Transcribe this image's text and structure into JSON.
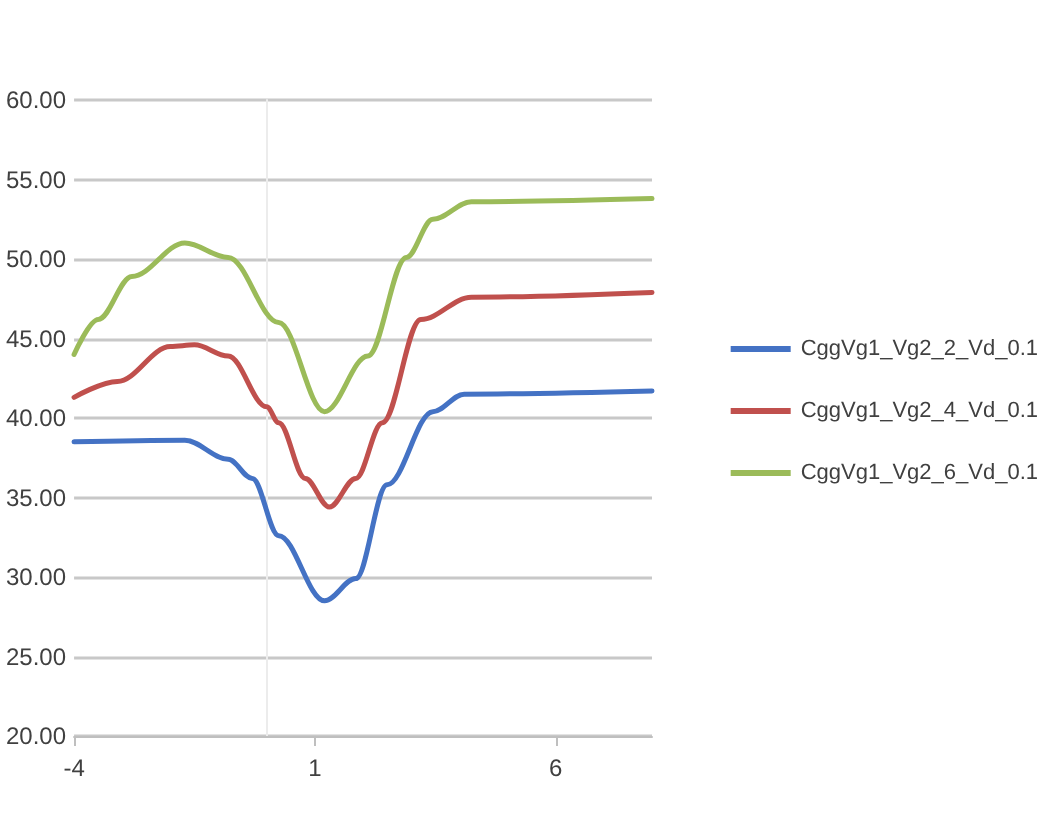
{
  "chart_data": {
    "type": "line",
    "xlim": [
      -4,
      8
    ],
    "xticks": [
      -4,
      1,
      6
    ],
    "ylim": [
      20,
      60
    ],
    "yticks": [
      {
        "value": 20,
        "label": "20.00"
      },
      {
        "value": 25,
        "label": "25.00"
      },
      {
        "value": 30,
        "label": "30.00"
      },
      {
        "value": 35,
        "label": "35.00"
      },
      {
        "value": 40,
        "label": "40.00"
      },
      {
        "value": 45,
        "label": "45.00"
      },
      {
        "value": 50,
        "label": "50.00"
      },
      {
        "value": 55,
        "label": "55.00"
      },
      {
        "value": 60,
        "label": "60.00"
      }
    ],
    "grid": "y",
    "legend": "right",
    "marker": "none",
    "line_style": "solid",
    "series": [
      {
        "name": "CggVg1_Vg2_2_Vd_0.1",
        "color": "#4472c4",
        "x": [
          -4,
          -1.7,
          -0.8,
          -0.3,
          0.25,
          1.2,
          1.85,
          2.5,
          3.45,
          4.1,
          8
        ],
        "values": [
          38.5,
          38.6,
          37.4,
          36.2,
          32.6,
          28.5,
          29.9,
          35.8,
          40.4,
          41.5,
          41.7
        ]
      },
      {
        "name": "CggVg1_Vg2_4_Vd_0.1",
        "color": "#c0504d",
        "x": [
          -4,
          -3.1,
          -2,
          -1.5,
          -0.8,
          0,
          0.25,
          0.8,
          1.3,
          1.85,
          2.4,
          3.2,
          4.25,
          8
        ],
        "values": [
          41.3,
          42.3,
          44.5,
          44.6,
          43.9,
          40.7,
          39.7,
          36.2,
          34.4,
          36.2,
          39.7,
          46.2,
          47.6,
          47.9
        ]
      },
      {
        "name": "CggVg1_Vg2_6_Vd_0.1",
        "color": "#9bbb59",
        "x": [
          -4,
          -3.5,
          -2.8,
          -1.7,
          -0.8,
          0.25,
          1.2,
          2.1,
          2.9,
          3.45,
          4.25,
          8
        ],
        "values": [
          44.0,
          46.2,
          48.9,
          51.0,
          50.1,
          46.0,
          40.4,
          43.9,
          50.1,
          52.5,
          53.6,
          53.8
        ]
      }
    ]
  }
}
